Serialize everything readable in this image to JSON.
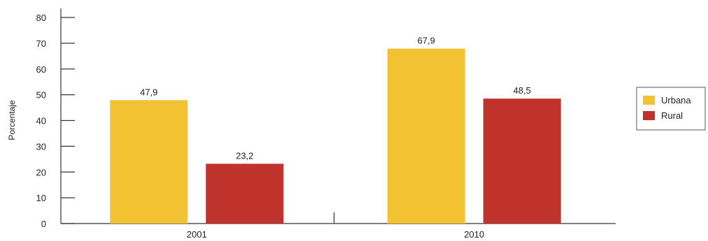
{
  "chart_data": {
    "type": "bar",
    "title": "",
    "xlabel": "",
    "ylabel": "Porcentaje",
    "categories": [
      "2001",
      "2010"
    ],
    "series": [
      {
        "name": "Urbana",
        "values": [
          47.9,
          67.9
        ],
        "labels": [
          "47,9",
          "67,9"
        ],
        "color": "#F3C232"
      },
      {
        "name": "Rural",
        "values": [
          23.2,
          48.5
        ],
        "labels": [
          "23,2",
          "48,5"
        ],
        "color": "#C0332D"
      }
    ],
    "ylim": [
      0,
      80
    ],
    "yticks": [
      0,
      10,
      20,
      30,
      40,
      50,
      60,
      70,
      80
    ],
    "grid": false,
    "legend": "right"
  }
}
